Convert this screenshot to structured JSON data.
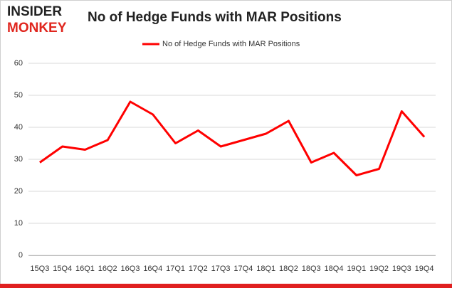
{
  "logo": {
    "top": "INSIDER",
    "bottom": "MONKEY"
  },
  "chart_data": {
    "type": "line",
    "title": "No of Hedge Funds with MAR Positions",
    "categories": [
      "15Q3",
      "15Q4",
      "16Q1",
      "16Q2",
      "16Q3",
      "16Q4",
      "17Q1",
      "17Q2",
      "17Q3",
      "17Q4",
      "18Q1",
      "18Q2",
      "18Q3",
      "18Q4",
      "19Q1",
      "19Q2",
      "19Q3",
      "19Q4"
    ],
    "series": [
      {
        "name": "No of Hedge Funds with MAR Positions",
        "color": "#ff0000",
        "values": [
          29,
          34,
          33,
          36,
          48,
          44,
          35,
          39,
          34,
          36,
          38,
          42,
          29,
          32,
          25,
          27,
          45,
          37
        ]
      }
    ],
    "ylim": [
      0,
      60
    ],
    "yticks": [
      0,
      10,
      20,
      30,
      40,
      50,
      60
    ],
    "grid": true,
    "legend": "top"
  }
}
